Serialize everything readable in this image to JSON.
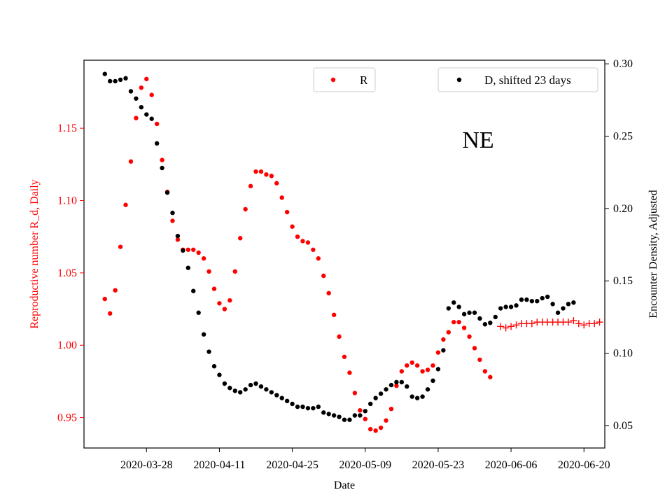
{
  "chart_data": {
    "type": "scatter",
    "title": "",
    "annotation": "NE",
    "xlabel": "Date",
    "ylabel_left": "Reproductive number R_d, Daily",
    "ylabel_right": "Encounter Density, Adjusted",
    "xlim": [
      "2020-03-16",
      "2020-06-24"
    ],
    "ylim_left": [
      0.929,
      1.197
    ],
    "ylim_right": [
      0.0345,
      0.3025
    ],
    "x_ticks": [
      "2020-03-28",
      "2020-04-11",
      "2020-04-25",
      "2020-05-09",
      "2020-05-23",
      "2020-06-06",
      "2020-06-20"
    ],
    "y_ticks_left": [
      "0.95",
      "1.00",
      "1.05",
      "1.10",
      "1.15"
    ],
    "y_ticks_right": [
      "0.05",
      "0.10",
      "0.15",
      "0.20",
      "0.25",
      "0.30"
    ],
    "left_axis_color": "#ff0000",
    "grid": false,
    "legend": [
      {
        "label": "R",
        "color": "#ff0000",
        "position": "upper-center"
      },
      {
        "label": "D, shifted 23 days",
        "color": "#000000",
        "position": "upper-right"
      }
    ],
    "series": [
      {
        "name": "R",
        "axis": "left",
        "color": "#ff0000",
        "marker": "dot",
        "start_date": "2020-03-20",
        "values": [
          1.032,
          1.022,
          1.038,
          1.068,
          1.097,
          1.127,
          1.157,
          1.178,
          1.184,
          1.173,
          1.153,
          1.128,
          1.106,
          1.086,
          1.073,
          1.066,
          1.066,
          1.066,
          1.064,
          1.06,
          1.051,
          1.039,
          1.029,
          1.025,
          1.031,
          1.051,
          1.074,
          1.094,
          1.11,
          1.12,
          1.12,
          1.118,
          1.117,
          1.112,
          1.102,
          1.092,
          1.082,
          1.075,
          1.072,
          1.071,
          1.066,
          1.06,
          1.048,
          1.036,
          1.021,
          1.006,
          0.992,
          0.981,
          0.967,
          0.955,
          0.949,
          0.942,
          0.941,
          0.943,
          0.948,
          0.956,
          0.972,
          0.982,
          0.986,
          0.988,
          0.986,
          0.982,
          0.983,
          0.986,
          0.995,
          1.004,
          1.009,
          1.016,
          1.016,
          1.012,
          1.006,
          0.998,
          0.99,
          0.982,
          0.978
        ]
      },
      {
        "name": "R",
        "axis": "left",
        "color": "#ff0000",
        "marker": "plus",
        "start_date": "2020-06-04",
        "values": [
          1.013,
          1.012,
          1.013,
          1.014,
          1.015,
          1.015,
          1.015,
          1.016,
          1.016,
          1.016,
          1.016,
          1.016,
          1.016,
          1.016,
          1.017,
          1.015,
          1.014,
          1.015,
          1.015,
          1.016
        ]
      },
      {
        "name": "D, shifted 23 days",
        "axis": "right",
        "color": "#000000",
        "marker": "dot",
        "start_date": "2020-03-20",
        "values": [
          0.293,
          0.288,
          0.288,
          0.289,
          0.29,
          0.281,
          0.276,
          0.27,
          0.265,
          0.262,
          0.245,
          0.228,
          0.211,
          0.197,
          0.181,
          0.171,
          0.159,
          0.143,
          0.128,
          0.113,
          0.101,
          0.091,
          0.085,
          0.079,
          0.076,
          0.074,
          0.073,
          0.075,
          0.078,
          0.079,
          0.077,
          0.075,
          0.073,
          0.071,
          0.069,
          0.067,
          0.065,
          0.063,
          0.063,
          0.062,
          0.062,
          0.063,
          0.059,
          0.058,
          0.057,
          0.056,
          0.054,
          0.054,
          0.057,
          0.057,
          0.06,
          0.065,
          0.069,
          0.072,
          0.075,
          0.078,
          0.08,
          0.08,
          0.077,
          0.07,
          0.069,
          0.07,
          0.075,
          0.081,
          0.089,
          0.102,
          0.131,
          0.135,
          0.132,
          0.127,
          0.128,
          0.128,
          0.124,
          0.12,
          0.121,
          0.125,
          0.131,
          0.132,
          0.132,
          0.133,
          0.137,
          0.137,
          0.136,
          0.136,
          0.138,
          0.139,
          0.134,
          0.128,
          0.131,
          0.134,
          0.135
        ]
      }
    ]
  }
}
